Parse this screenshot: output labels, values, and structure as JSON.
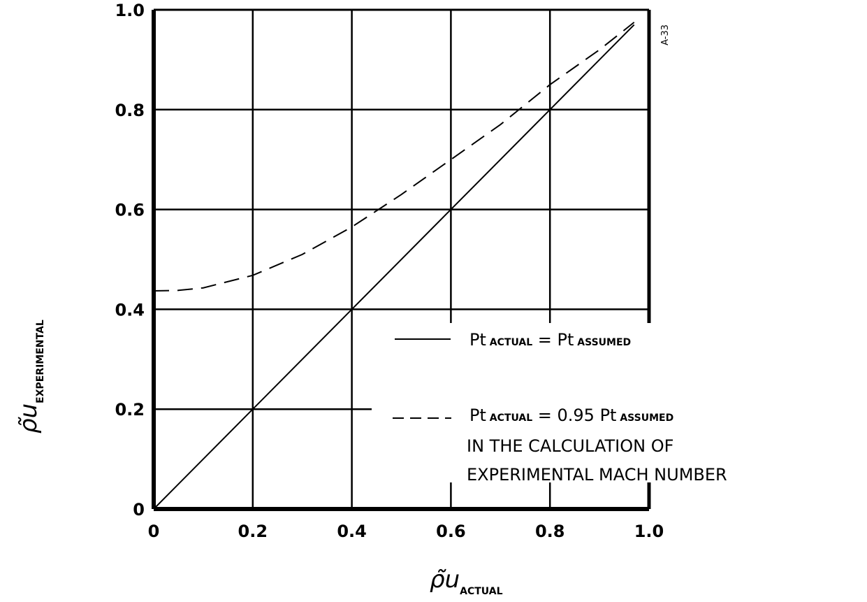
{
  "chart_data": {
    "type": "line",
    "xlim": [
      0,
      1.0
    ],
    "ylim": [
      0,
      1.0
    ],
    "grid": true,
    "legend_position": "lower-right",
    "x_ticks": [
      "0",
      "0.2",
      "0.4",
      "0.6",
      "0.8",
      "1.0"
    ],
    "y_ticks": [
      "0",
      "0.2",
      "0.4",
      "0.6",
      "0.8",
      "1.0"
    ],
    "xlabel": {
      "main": "ρ̃u",
      "sub": "ACTUAL"
    },
    "ylabel": {
      "main": "ρ̃u",
      "sub": "EXPERIMENTAL"
    },
    "figure_id": "A-33",
    "series": [
      {
        "style": "solid",
        "x": [
          0,
          0.2,
          0.4,
          0.6,
          0.8,
          0.97
        ],
        "y": [
          0,
          0.2,
          0.4,
          0.6,
          0.8,
          0.97
        ]
      },
      {
        "style": "dashed",
        "x": [
          0,
          0.05,
          0.1,
          0.2,
          0.3,
          0.4,
          0.5,
          0.6,
          0.7,
          0.8,
          0.9,
          0.97
        ],
        "y": [
          0.437,
          0.438,
          0.443,
          0.468,
          0.51,
          0.565,
          0.63,
          0.7,
          0.77,
          0.85,
          0.92,
          0.975
        ]
      }
    ],
    "legend": [
      {
        "style": "solid",
        "line1": [
          {
            "t": "P",
            "k": "m"
          },
          {
            "t": "t",
            "k": "m"
          },
          {
            "t": " ACTUAL",
            "k": "s"
          },
          {
            "t": "  =  P",
            "k": "m"
          },
          {
            "t": "t",
            "k": "m"
          },
          {
            "t": " ASSUMED",
            "k": "s"
          }
        ]
      },
      {
        "style": "dashed",
        "line1": [
          {
            "t": "P",
            "k": "m"
          },
          {
            "t": "t",
            "k": "m"
          },
          {
            "t": " ACTUAL",
            "k": "s"
          },
          {
            "t": " = 0.95 P",
            "k": "m"
          },
          {
            "t": "t",
            "k": "m"
          },
          {
            "t": " ASSUMED",
            "k": "s"
          }
        ],
        "line2": "IN THE CALCULATION OF",
        "line3": "EXPERIMENTAL MACH NUMBER"
      }
    ]
  }
}
